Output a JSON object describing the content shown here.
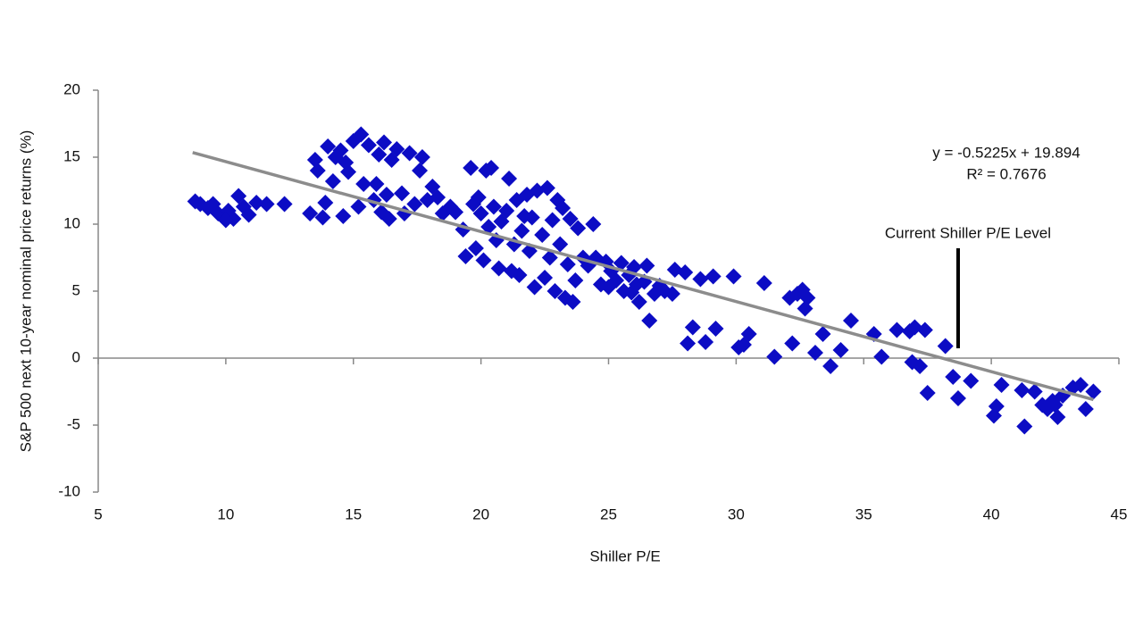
{
  "chart_data": {
    "type": "scatter",
    "x_label": "Shiller P/E",
    "y_label": "S&P 500 next 10-year nominal price returns (%)",
    "color": "#0c0cc4",
    "x": [
      8.8,
      9.0,
      9.3,
      9.5,
      9.7,
      9.9,
      10.1,
      10.3,
      10.5,
      10.7,
      10.9,
      11.2,
      11.6,
      12.3,
      10.0,
      13.3,
      13.5,
      13.6,
      13.8,
      13.9,
      14.0,
      14.2,
      14.3,
      14.5,
      14.7,
      14.8,
      15.0,
      15.2,
      15.3,
      15.4,
      15.6,
      15.8,
      15.9,
      16.0,
      16.2,
      16.3,
      16.4,
      16.5,
      16.7,
      16.9,
      17.0,
      17.2,
      17.4,
      17.6,
      17.7,
      17.9,
      18.1,
      18.3,
      18.5,
      18.8,
      19.0,
      16.1,
      14.6,
      19.3,
      19.4,
      19.6,
      19.7,
      19.8,
      19.9,
      20.0,
      20.1,
      20.2,
      20.4,
      20.3,
      20.5,
      20.6,
      20.7,
      20.8,
      21.0,
      21.1,
      21.2,
      21.3,
      21.4,
      21.5,
      21.6,
      21.7,
      21.8,
      21.9,
      22.0,
      22.1,
      22.2,
      22.4,
      22.5,
      22.6,
      22.7,
      22.8,
      22.9,
      23.0,
      23.1,
      23.2,
      23.3,
      23.4,
      23.5,
      23.6,
      23.7,
      23.8,
      24.0,
      24.2,
      24.4,
      24.5,
      24.7,
      24.9,
      25.0,
      25.1,
      25.3,
      25.5,
      25.6,
      25.8,
      25.9,
      26.0,
      26.1,
      26.2,
      26.4,
      26.5,
      26.6,
      26.8,
      27.0,
      27.2,
      27.5,
      27.6,
      28.0,
      28.1,
      28.3,
      28.6,
      28.8,
      29.1,
      29.2,
      29.9,
      30.1,
      30.3,
      30.5,
      31.1,
      31.5,
      32.1,
      32.2,
      32.4,
      32.6,
      32.7,
      32.8,
      33.1,
      33.4,
      33.7,
      34.1,
      34.5,
      35.4,
      35.7,
      36.3,
      36.8,
      36.9,
      37.0,
      37.2,
      37.4,
      37.5,
      38.2,
      38.5,
      38.7,
      39.2,
      40.1,
      40.2,
      40.4,
      41.2,
      41.3,
      41.7,
      42.0,
      42.2,
      42.4,
      42.6,
      42.8,
      43.2,
      43.5,
      43.7,
      44.0,
      42.5
    ],
    "y": [
      11.7,
      11.5,
      11.2,
      11.5,
      10.8,
      10.6,
      11.0,
      10.4,
      12.1,
      11.3,
      10.7,
      11.6,
      11.5,
      11.5,
      10.3,
      10.8,
      14.8,
      14.0,
      10.5,
      11.6,
      15.8,
      13.2,
      15.0,
      15.5,
      14.6,
      13.9,
      16.2,
      11.3,
      16.7,
      13.0,
      15.9,
      11.8,
      13.0,
      15.2,
      16.1,
      12.2,
      10.4,
      14.8,
      15.6,
      12.3,
      10.8,
      15.3,
      11.5,
      14.0,
      15.0,
      11.8,
      12.8,
      12.0,
      10.8,
      11.3,
      10.9,
      10.9,
      10.6,
      9.6,
      7.6,
      14.2,
      11.5,
      8.2,
      12.0,
      10.8,
      7.3,
      14.0,
      14.2,
      9.8,
      11.3,
      8.8,
      6.7,
      10.2,
      11.0,
      13.4,
      6.5,
      8.5,
      11.8,
      6.2,
      9.5,
      10.6,
      12.2,
      8.0,
      10.5,
      5.3,
      12.5,
      9.2,
      6.0,
      12.7,
      7.5,
      10.3,
      5.0,
      11.8,
      8.5,
      11.2,
      4.5,
      7.0,
      10.4,
      4.2,
      5.8,
      9.7,
      7.5,
      6.9,
      10.0,
      7.5,
      5.5,
      7.2,
      5.3,
      6.5,
      5.8,
      7.1,
      5.0,
      6.2,
      4.9,
      6.8,
      5.5,
      4.2,
      5.7,
      6.9,
      2.8,
      4.8,
      5.4,
      5.0,
      4.8,
      6.6,
      6.4,
      1.1,
      2.3,
      5.9,
      1.2,
      6.1,
      2.2,
      6.1,
      0.8,
      1.0,
      1.8,
      5.6,
      0.1,
      4.5,
      1.1,
      4.8,
      5.1,
      3.7,
      4.5,
      0.4,
      1.8,
      -0.6,
      0.6,
      2.8,
      1.8,
      0.1,
      2.1,
      2.0,
      -0.3,
      2.3,
      -0.6,
      2.1,
      -2.6,
      0.9,
      -1.4,
      -3.0,
      -1.7,
      -4.3,
      -3.6,
      -2.0,
      -2.4,
      -5.1,
      -2.5,
      -3.5,
      -3.8,
      -3.2,
      -4.4,
      -2.8,
      -2.2,
      -2.0,
      -3.8,
      -2.5,
      -3.5
    ],
    "xlim": [
      5,
      45
    ],
    "xticks": [
      5,
      10,
      15,
      20,
      25,
      30,
      35,
      40,
      45
    ],
    "ylim": [
      -10,
      20
    ],
    "yticks": [
      -10,
      -5,
      0,
      5,
      10,
      15,
      20
    ],
    "trendline": {
      "equation": "y = -0.5225x + 19.894",
      "r_squared": "R² = 0.7676",
      "slope": -0.5225,
      "intercept": 19.894,
      "x": [
        8.7,
        44
      ],
      "color": "#8c8c8c"
    },
    "annotation": {
      "label": "Current Shiller P/E Level",
      "x": 38.7
    }
  }
}
